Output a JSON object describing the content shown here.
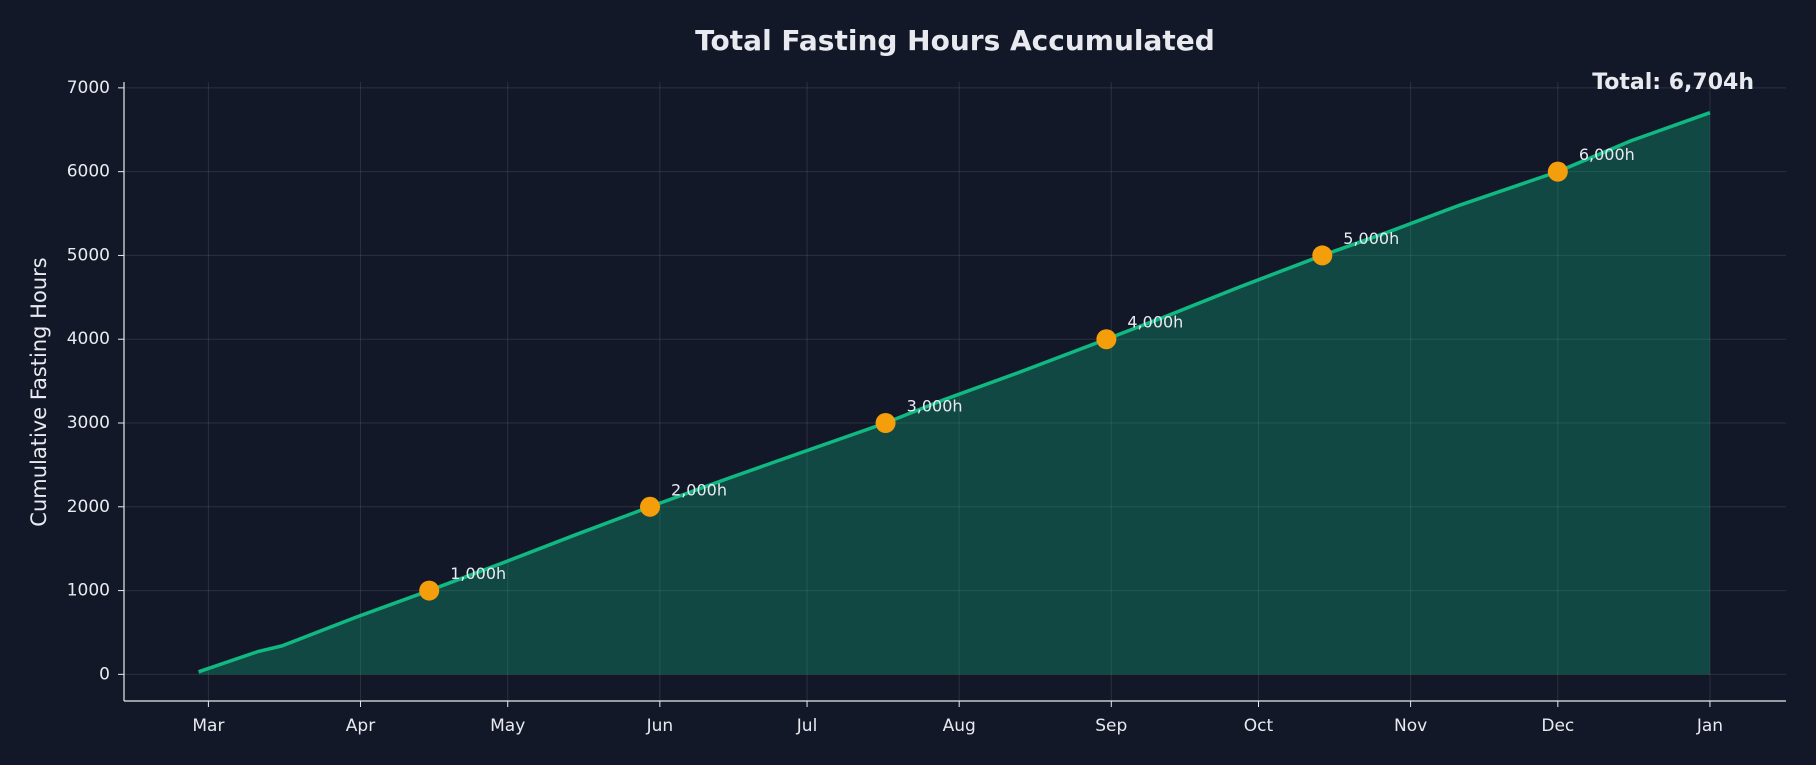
{
  "chart_data": {
    "type": "area",
    "title": "Total Fasting Hours Accumulated",
    "y_label": "Cumulative Fasting Hours",
    "annotation": "Total: 6,704h",
    "x": [
      -2,
      10,
      15,
      30,
      45,
      60,
      75,
      90,
      105,
      120,
      138,
      150,
      165,
      183,
      195,
      210,
      227,
      240,
      255,
      275,
      290,
      306
    ],
    "values": [
      30,
      270,
      340,
      680,
      1000,
      1330,
      1670,
      2000,
      2320,
      2630,
      3000,
      3280,
      3600,
      4000,
      4270,
      4620,
      5000,
      5270,
      5600,
      6000,
      6370,
      6704
    ],
    "color": "#10b981",
    "fill_color": "#10b981",
    "markers": {
      "x": [
        45,
        90,
        138,
        183,
        227,
        275
      ],
      "values": [
        1000,
        2000,
        3000,
        4000,
        5000,
        6000
      ],
      "value_labels": [
        "1,000h",
        "2,000h",
        "3,000h",
        "4,000h",
        "5,000h",
        "6,000h"
      ],
      "color": "#f59e0b"
    },
    "xlim": [
      -17.2,
      321.5
    ],
    "xticks": [
      {
        "value": 0,
        "label": "Mar"
      },
      {
        "value": 31,
        "label": "Apr"
      },
      {
        "value": 61,
        "label": "May"
      },
      {
        "value": 92,
        "label": "Jun"
      },
      {
        "value": 122,
        "label": "Jul"
      },
      {
        "value": 153,
        "label": "Aug"
      },
      {
        "value": 184,
        "label": "Sep"
      },
      {
        "value": 214,
        "label": "Oct"
      },
      {
        "value": 245,
        "label": "Nov"
      },
      {
        "value": 275,
        "label": "Dec"
      },
      {
        "value": 306,
        "label": "Jan"
      }
    ],
    "ylim": [
      -318,
      7070
    ],
    "yticks": [
      0,
      1000,
      2000,
      3000,
      4000,
      5000,
      6000,
      7000
    ],
    "grid": true
  }
}
